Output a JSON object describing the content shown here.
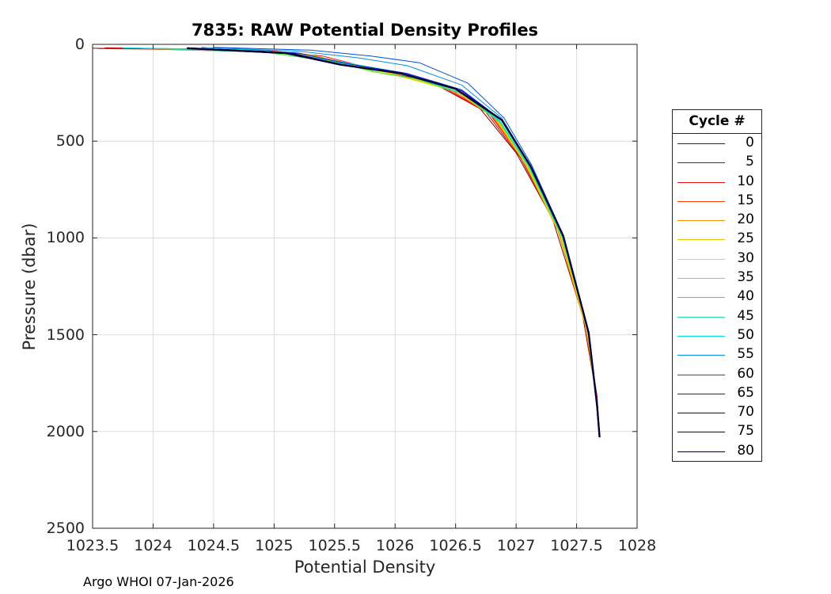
{
  "chart_data": {
    "type": "line",
    "title": "7835: RAW Potential Density Profiles",
    "xlabel": "Potential Density",
    "ylabel": "Pressure (dbar)",
    "xlim": [
      1023.5,
      1028
    ],
    "ylim": [
      0,
      2500
    ],
    "y_reversed": true,
    "grid": true,
    "xticks": [
      "1023.5",
      "1024",
      "1024.5",
      "1025",
      "1025.5",
      "1026",
      "1026.5",
      "1027",
      "1027.5",
      "1028"
    ],
    "yticks": [
      "0",
      "500",
      "1000",
      "1500",
      "2000",
      "2500"
    ],
    "legend": {
      "title": "Cycle #",
      "placement": "right",
      "entries": [
        {
          "label": "0",
          "color": "#800000"
        },
        {
          "label": "5",
          "color": "#c00000"
        },
        {
          "label": "10",
          "color": "#e81010"
        },
        {
          "label": "15",
          "color": "#ff4000"
        },
        {
          "label": "20",
          "color": "#ff9000"
        },
        {
          "label": "25",
          "color": "#e6c800"
        },
        {
          "label": "30",
          "color": "#d8e800"
        },
        {
          "label": "35",
          "color": "#90e020"
        },
        {
          "label": "40",
          "color": "#40e040"
        },
        {
          "label": "45",
          "color": "#20e0a0"
        },
        {
          "label": "50",
          "color": "#00e0e0"
        },
        {
          "label": "55",
          "color": "#0090e0"
        },
        {
          "label": "60",
          "color": "#0050e0"
        },
        {
          "label": "65",
          "color": "#0020e0"
        },
        {
          "label": "70",
          "color": "#0000c0"
        },
        {
          "label": "75",
          "color": "#000080"
        },
        {
          "label": "80",
          "color": "#000030"
        }
      ]
    },
    "series": [
      {
        "cycle": 0,
        "color": "#800000",
        "points": [
          [
            1023.5,
            20
          ],
          [
            1024.5,
            25
          ],
          [
            1025.2,
            45
          ],
          [
            1025.7,
            110
          ],
          [
            1026.3,
            195
          ],
          [
            1026.7,
            330
          ],
          [
            1027.0,
            560
          ],
          [
            1027.3,
            900
          ],
          [
            1027.55,
            1400
          ],
          [
            1027.66,
            1800
          ],
          [
            1027.69,
            2030
          ]
        ]
      },
      {
        "cycle": 5,
        "color": "#c00000",
        "points": [
          [
            1023.6,
            18
          ],
          [
            1024.8,
            28
          ],
          [
            1025.3,
            55
          ],
          [
            1025.8,
            125
          ],
          [
            1026.35,
            210
          ],
          [
            1026.75,
            350
          ],
          [
            1027.03,
            580
          ],
          [
            1027.33,
            930
          ],
          [
            1027.57,
            1420
          ],
          [
            1027.67,
            1820
          ],
          [
            1027.69,
            2030
          ]
        ]
      },
      {
        "cycle": 10,
        "color": "#e81010",
        "points": [
          [
            1023.55,
            22
          ],
          [
            1024.9,
            30
          ],
          [
            1025.4,
            60
          ],
          [
            1025.9,
            140
          ],
          [
            1026.4,
            220
          ],
          [
            1026.78,
            360
          ],
          [
            1027.05,
            590
          ],
          [
            1027.34,
            950
          ],
          [
            1027.58,
            1450
          ],
          [
            1027.67,
            1850
          ],
          [
            1027.69,
            2030
          ]
        ]
      },
      {
        "cycle": 15,
        "color": "#ff4000",
        "points": [
          [
            1024.0,
            25
          ],
          [
            1025.0,
            40
          ],
          [
            1025.5,
            85
          ],
          [
            1026.0,
            155
          ],
          [
            1026.45,
            230
          ],
          [
            1026.8,
            370
          ],
          [
            1027.06,
            600
          ],
          [
            1027.35,
            960
          ],
          [
            1027.58,
            1460
          ],
          [
            1027.67,
            1850
          ],
          [
            1027.69,
            2030
          ]
        ]
      },
      {
        "cycle": 20,
        "color": "#ff9000",
        "points": [
          [
            1024.2,
            22
          ],
          [
            1025.1,
            45
          ],
          [
            1025.6,
            100
          ],
          [
            1026.05,
            165
          ],
          [
            1026.5,
            240
          ],
          [
            1026.82,
            380
          ],
          [
            1027.07,
            610
          ],
          [
            1027.35,
            970
          ],
          [
            1027.58,
            1470
          ],
          [
            1027.67,
            1860
          ],
          [
            1027.69,
            2030
          ]
        ]
      },
      {
        "cycle": 25,
        "color": "#e6c800",
        "points": [
          [
            1024.3,
            20
          ],
          [
            1025.2,
            50
          ],
          [
            1025.7,
            110
          ],
          [
            1026.1,
            170
          ],
          [
            1026.52,
            245
          ],
          [
            1026.84,
            390
          ],
          [
            1027.08,
            620
          ],
          [
            1027.36,
            980
          ],
          [
            1027.59,
            1480
          ],
          [
            1027.67,
            1860
          ],
          [
            1027.69,
            2030
          ]
        ]
      },
      {
        "cycle": 30,
        "color": "#d8e800",
        "points": [
          [
            1024.5,
            18
          ],
          [
            1025.3,
            55
          ],
          [
            1025.75,
            120
          ],
          [
            1026.1,
            175
          ],
          [
            1026.54,
            250
          ],
          [
            1026.85,
            395
          ],
          [
            1027.09,
            625
          ],
          [
            1027.37,
            985
          ],
          [
            1027.59,
            1480
          ],
          [
            1027.67,
            1870
          ],
          [
            1027.69,
            2030
          ]
        ]
      },
      {
        "cycle": 35,
        "color": "#90e020",
        "points": [
          [
            1024.6,
            20
          ],
          [
            1025.4,
            70
          ],
          [
            1025.8,
            140
          ],
          [
            1026.15,
            175
          ],
          [
            1026.55,
            255
          ],
          [
            1026.86,
            400
          ],
          [
            1027.1,
            630
          ],
          [
            1027.38,
            990
          ],
          [
            1027.6,
            1490
          ],
          [
            1027.67,
            1870
          ],
          [
            1027.69,
            2030
          ]
        ]
      },
      {
        "cycle": 40,
        "color": "#40e040",
        "points": [
          [
            1024.7,
            22
          ],
          [
            1025.5,
            90
          ],
          [
            1025.9,
            150
          ],
          [
            1026.2,
            180
          ],
          [
            1026.57,
            260
          ],
          [
            1026.87,
            405
          ],
          [
            1027.11,
            635
          ],
          [
            1027.38,
            995
          ],
          [
            1027.6,
            1490
          ],
          [
            1027.67,
            1870
          ],
          [
            1027.69,
            2030
          ]
        ]
      },
      {
        "cycle": 45,
        "color": "#20e0a0",
        "points": [
          [
            1023.9,
            20
          ],
          [
            1025.1,
            45
          ],
          [
            1025.6,
            105
          ],
          [
            1026.1,
            160
          ],
          [
            1026.55,
            250
          ],
          [
            1026.87,
            400
          ],
          [
            1027.11,
            635
          ],
          [
            1027.38,
            995
          ],
          [
            1027.6,
            1490
          ],
          [
            1027.67,
            1870
          ],
          [
            1027.69,
            2030
          ]
        ]
      },
      {
        "cycle": 50,
        "color": "#00e0e0",
        "points": [
          [
            1023.75,
            18
          ],
          [
            1024.9,
            30
          ],
          [
            1025.5,
            85
          ],
          [
            1026.0,
            140
          ],
          [
            1026.5,
            230
          ],
          [
            1026.86,
            390
          ],
          [
            1027.11,
            630
          ],
          [
            1027.38,
            990
          ],
          [
            1027.6,
            1490
          ],
          [
            1027.67,
            1870
          ],
          [
            1027.69,
            2030
          ]
        ]
      },
      {
        "cycle": 55,
        "color": "#0090e0",
        "points": [
          [
            1024.4,
            15
          ],
          [
            1025.2,
            35
          ],
          [
            1025.7,
            70
          ],
          [
            1026.1,
            110
          ],
          [
            1026.55,
            210
          ],
          [
            1026.88,
            380
          ],
          [
            1027.12,
            625
          ],
          [
            1027.39,
            985
          ],
          [
            1027.6,
            1490
          ],
          [
            1027.67,
            1870
          ],
          [
            1027.69,
            2030
          ]
        ]
      },
      {
        "cycle": 60,
        "color": "#0050e0",
        "points": [
          [
            1024.5,
            15
          ],
          [
            1025.3,
            30
          ],
          [
            1025.8,
            60
          ],
          [
            1026.2,
            95
          ],
          [
            1026.6,
            200
          ],
          [
            1026.9,
            380
          ],
          [
            1027.13,
            625
          ],
          [
            1027.39,
            985
          ],
          [
            1027.6,
            1490
          ],
          [
            1027.67,
            1870
          ],
          [
            1027.69,
            2030
          ]
        ]
      },
      {
        "cycle": 65,
        "color": "#0020e0",
        "points": [
          [
            1024.3,
            18
          ],
          [
            1025.2,
            45
          ],
          [
            1025.6,
            100
          ],
          [
            1026.1,
            150
          ],
          [
            1026.55,
            235
          ],
          [
            1026.88,
            390
          ],
          [
            1027.12,
            630
          ],
          [
            1027.39,
            990
          ],
          [
            1027.6,
            1490
          ],
          [
            1027.67,
            1870
          ],
          [
            1027.69,
            2030
          ]
        ]
      },
      {
        "cycle": 70,
        "color": "#0000c0",
        "points": [
          [
            1024.3,
            20
          ],
          [
            1025.15,
            45
          ],
          [
            1025.6,
            110
          ],
          [
            1026.1,
            155
          ],
          [
            1026.55,
            240
          ],
          [
            1026.89,
            395
          ],
          [
            1027.12,
            632
          ],
          [
            1027.39,
            990
          ],
          [
            1027.6,
            1490
          ],
          [
            1027.67,
            1870
          ],
          [
            1027.69,
            2030
          ]
        ]
      },
      {
        "cycle": 75,
        "color": "#000080",
        "points": [
          [
            1024.28,
            20
          ],
          [
            1025.1,
            45
          ],
          [
            1025.55,
            105
          ],
          [
            1026.05,
            150
          ],
          [
            1026.5,
            230
          ],
          [
            1026.88,
            390
          ],
          [
            1027.12,
            630
          ],
          [
            1027.39,
            990
          ],
          [
            1027.6,
            1490
          ],
          [
            1027.67,
            1870
          ],
          [
            1027.69,
            2030
          ]
        ]
      },
      {
        "cycle": 80,
        "color": "#000030",
        "points": [
          [
            1024.28,
            20
          ],
          [
            1025.1,
            45
          ],
          [
            1025.55,
            105
          ],
          [
            1026.05,
            150
          ],
          [
            1026.5,
            230
          ],
          [
            1026.88,
            390
          ],
          [
            1027.12,
            630
          ],
          [
            1027.39,
            990
          ],
          [
            1027.6,
            1490
          ],
          [
            1027.67,
            1870
          ],
          [
            1027.69,
            2030
          ]
        ]
      }
    ]
  },
  "footer": "Argo WHOI 07-Jan-2026"
}
